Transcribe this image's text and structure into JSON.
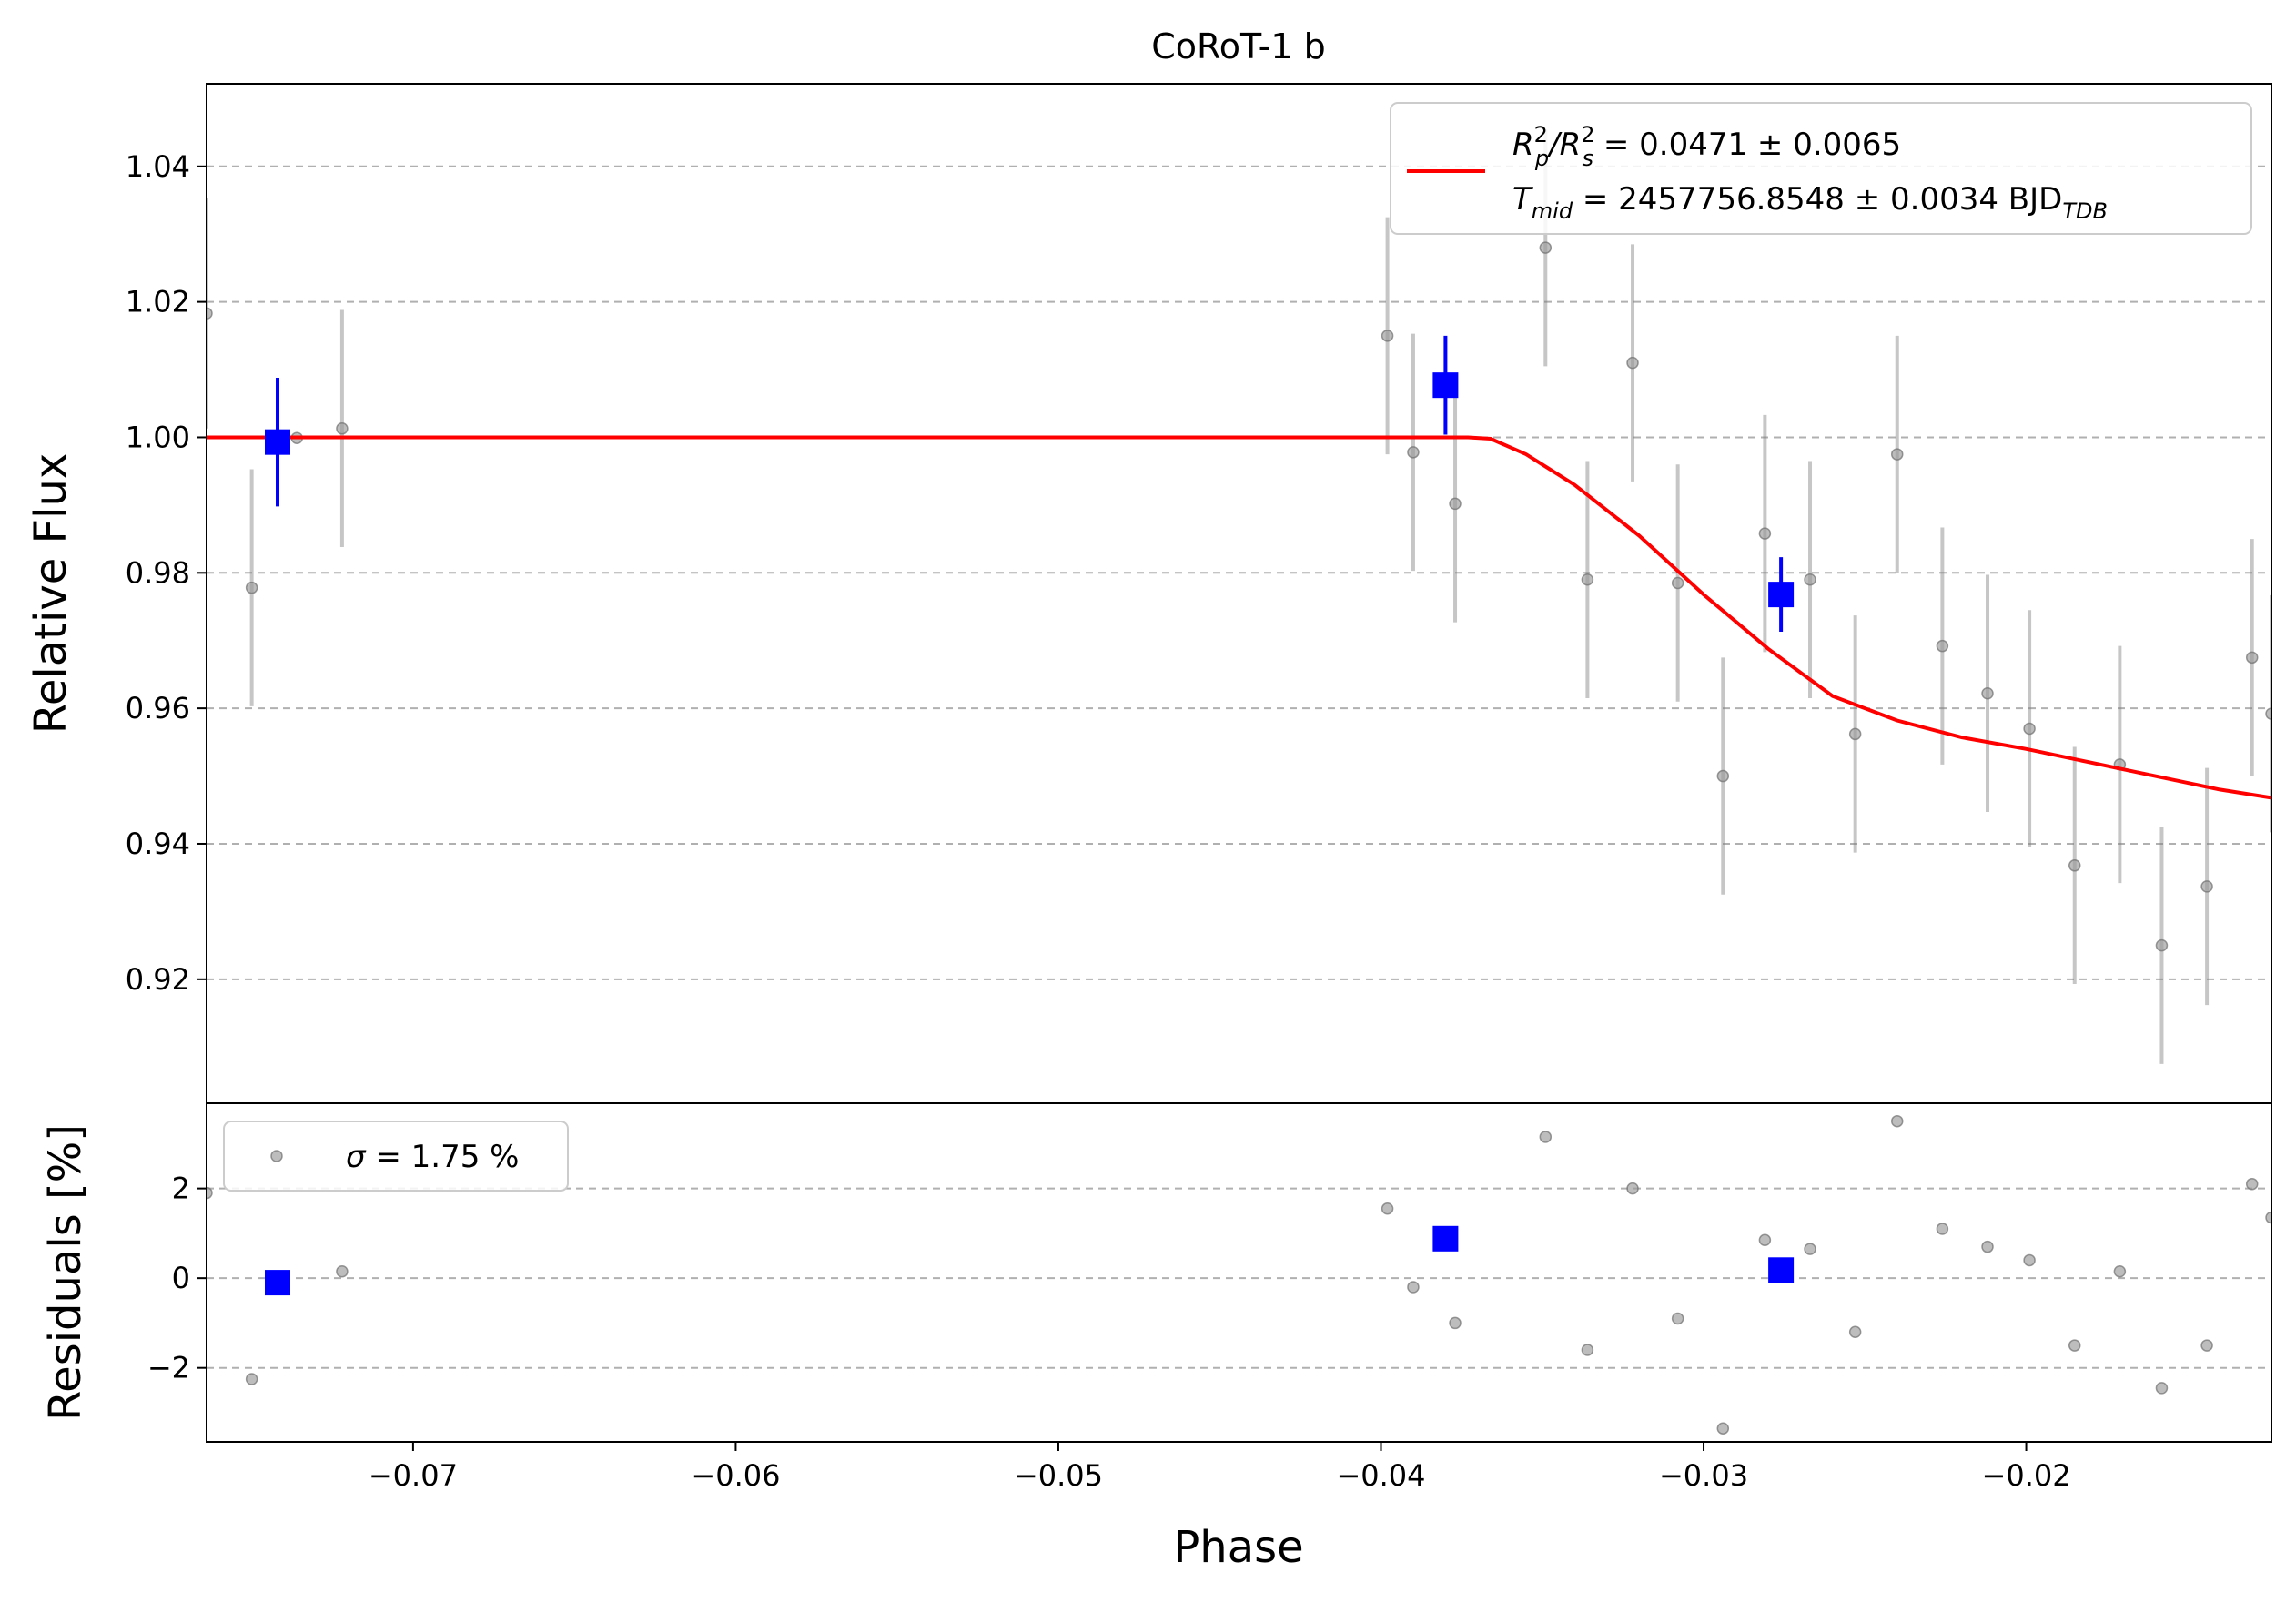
{
  "chart_data": [
    {
      "type": "scatter",
      "panel": "main",
      "title": "CoRoT-1 b",
      "xlabel": "",
      "ylabel": "Relative Flux",
      "xlim": [
        -0.0764,
        -0.0124
      ],
      "ylim": [
        0.9017,
        1.0522
      ],
      "yticks": [
        0.92,
        0.94,
        0.96,
        0.98,
        1.0,
        1.02,
        1.04
      ],
      "ytick_labels": [
        "0.92",
        "0.94",
        "0.96",
        "0.98",
        "1.00",
        "1.02",
        "1.04"
      ],
      "grid": "y-dashed",
      "legend": {
        "placement": "top-right",
        "line_label_1_main": "R",
        "line_label_1_sup1": "2",
        "line_label_1_sub1": "p",
        "line_label_1_slash": "/R",
        "line_label_1_sup2": "2",
        "line_label_1_sub2": "s",
        "line_label_1_value": " = 0.0471 ± 0.0065",
        "line_label_2_main": "T",
        "line_label_2_sub": "mid",
        "line_label_2_value": " = 2457756.8548 ± 0.0034 BJD",
        "line_label_2_unit_sub": "TDB"
      },
      "colors": {
        "model": "#ff0000",
        "binned": "#0000ff",
        "raw": "#808080"
      },
      "series": [
        {
          "kind": "raw",
          "points": [
            {
              "x": -0.0764,
              "y": 1.0183,
              "err": 0.017
            },
            {
              "x": -0.075,
              "y": 0.9778,
              "err": 0.0175
            },
            {
              "x": -0.0722,
              "y": 1.0013,
              "err": 0.0175
            },
            {
              "x": -0.0736,
              "y": 0.9999,
              "err": 0.0
            },
            {
              "x": -0.0398,
              "y": 1.015,
              "err": 0.0175
            },
            {
              "x": -0.039,
              "y": 0.9978,
              "err": 0.0175
            },
            {
              "x": -0.0377,
              "y": 0.9902,
              "err": 0.0175
            },
            {
              "x": -0.0349,
              "y": 1.028,
              "err": 0.0175
            },
            {
              "x": -0.0336,
              "y": 0.979,
              "err": 0.0175
            },
            {
              "x": -0.0322,
              "y": 1.011,
              "err": 0.0175
            },
            {
              "x": -0.0308,
              "y": 0.9785,
              "err": 0.0175
            },
            {
              "x": -0.0294,
              "y": 0.95,
              "err": 0.0175
            },
            {
              "x": -0.0281,
              "y": 0.9858,
              "err": 0.0175
            },
            {
              "x": -0.0267,
              "y": 0.979,
              "err": 0.0175
            },
            {
              "x": -0.0253,
              "y": 0.9562,
              "err": 0.0175
            },
            {
              "x": -0.024,
              "y": 0.9975,
              "err": 0.0175
            },
            {
              "x": -0.0226,
              "y": 0.9692,
              "err": 0.0175
            },
            {
              "x": -0.0212,
              "y": 0.9622,
              "err": 0.0175
            },
            {
              "x": -0.0199,
              "y": 0.957,
              "err": 0.0175
            },
            {
              "x": -0.0185,
              "y": 0.9368,
              "err": 0.0175
            },
            {
              "x": -0.0171,
              "y": 0.9517,
              "err": 0.0175
            },
            {
              "x": -0.0158,
              "y": 0.925,
              "err": 0.0175
            },
            {
              "x": -0.0144,
              "y": 0.9337,
              "err": 0.0175
            },
            {
              "x": -0.013,
              "y": 0.9675,
              "err": 0.0175
            },
            {
              "x": -0.0124,
              "y": 0.9592,
              "err": 0.0175
            }
          ]
        },
        {
          "kind": "binned",
          "points": [
            {
              "x": -0.0742,
              "y": 0.9993,
              "err": 0.0095
            },
            {
              "x": -0.038,
              "y": 1.0077,
              "err": 0.0073
            },
            {
              "x": -0.0276,
              "y": 0.9768,
              "err": 0.0055
            }
          ]
        },
        {
          "kind": "model",
          "points": [
            {
              "x": -0.0764,
              "y": 1.0
            },
            {
              "x": -0.0373,
              "y": 1.0
            },
            {
              "x": -0.0366,
              "y": 0.9998
            },
            {
              "x": -0.0355,
              "y": 0.9975
            },
            {
              "x": -0.034,
              "y": 0.993
            },
            {
              "x": -0.032,
              "y": 0.9855
            },
            {
              "x": -0.03,
              "y": 0.9768
            },
            {
              "x": -0.028,
              "y": 0.9688
            },
            {
              "x": -0.026,
              "y": 0.9618
            },
            {
              "x": -0.024,
              "y": 0.9582
            },
            {
              "x": -0.022,
              "y": 0.9557
            },
            {
              "x": -0.02,
              "y": 0.954
            },
            {
              "x": -0.018,
              "y": 0.952
            },
            {
              "x": -0.016,
              "y": 0.95
            },
            {
              "x": -0.014,
              "y": 0.948
            },
            {
              "x": -0.0124,
              "y": 0.9468
            }
          ]
        }
      ]
    },
    {
      "type": "scatter",
      "panel": "residuals",
      "title": "",
      "xlabel": "Phase",
      "ylabel": "Residuals [%]",
      "xlim": [
        -0.0764,
        -0.0124
      ],
      "ylim": [
        -3.65,
        3.9
      ],
      "yticks": [
        -2,
        0,
        2
      ],
      "ytick_labels": [
        "−2",
        "0",
        "2"
      ],
      "xticks": [
        -0.07,
        -0.06,
        -0.05,
        -0.04,
        -0.03,
        -0.02
      ],
      "xtick_labels": [
        "−0.07",
        "−0.06",
        "−0.05",
        "−0.04",
        "−0.03",
        "−0.02"
      ],
      "grid": "y-dashed",
      "legend": {
        "placement": "top-left",
        "label_symbol": "σ",
        "label_value": " = 1.75 %"
      },
      "series": [
        {
          "kind": "raw",
          "points": [
            {
              "x": -0.0764,
              "y": 1.9
            },
            {
              "x": -0.075,
              "y": -2.25
            },
            {
              "x": -0.0722,
              "y": 0.15
            },
            {
              "x": -0.0398,
              "y": 1.55
            },
            {
              "x": -0.039,
              "y": -0.2
            },
            {
              "x": -0.0377,
              "y": -1.0
            },
            {
              "x": -0.0349,
              "y": 3.15
            },
            {
              "x": -0.0336,
              "y": -1.6
            },
            {
              "x": -0.0322,
              "y": 2.0
            },
            {
              "x": -0.0308,
              "y": -0.9
            },
            {
              "x": -0.0294,
              "y": -3.35
            },
            {
              "x": -0.0281,
              "y": 0.85
            },
            {
              "x": -0.0267,
              "y": 0.65
            },
            {
              "x": -0.0253,
              "y": -1.2
            },
            {
              "x": -0.024,
              "y": 3.5
            },
            {
              "x": -0.0226,
              "y": 1.1
            },
            {
              "x": -0.0212,
              "y": 0.7
            },
            {
              "x": -0.0199,
              "y": 0.4
            },
            {
              "x": -0.0185,
              "y": -1.5
            },
            {
              "x": -0.0171,
              "y": 0.15
            },
            {
              "x": -0.0158,
              "y": -2.45
            },
            {
              "x": -0.0144,
              "y": -1.5
            },
            {
              "x": -0.013,
              "y": 2.1
            },
            {
              "x": -0.0124,
              "y": 1.35
            }
          ]
        },
        {
          "kind": "binned",
          "points": [
            {
              "x": -0.0742,
              "y": -0.1
            },
            {
              "x": -0.038,
              "y": 0.88
            },
            {
              "x": -0.0276,
              "y": 0.18
            }
          ]
        }
      ]
    }
  ]
}
